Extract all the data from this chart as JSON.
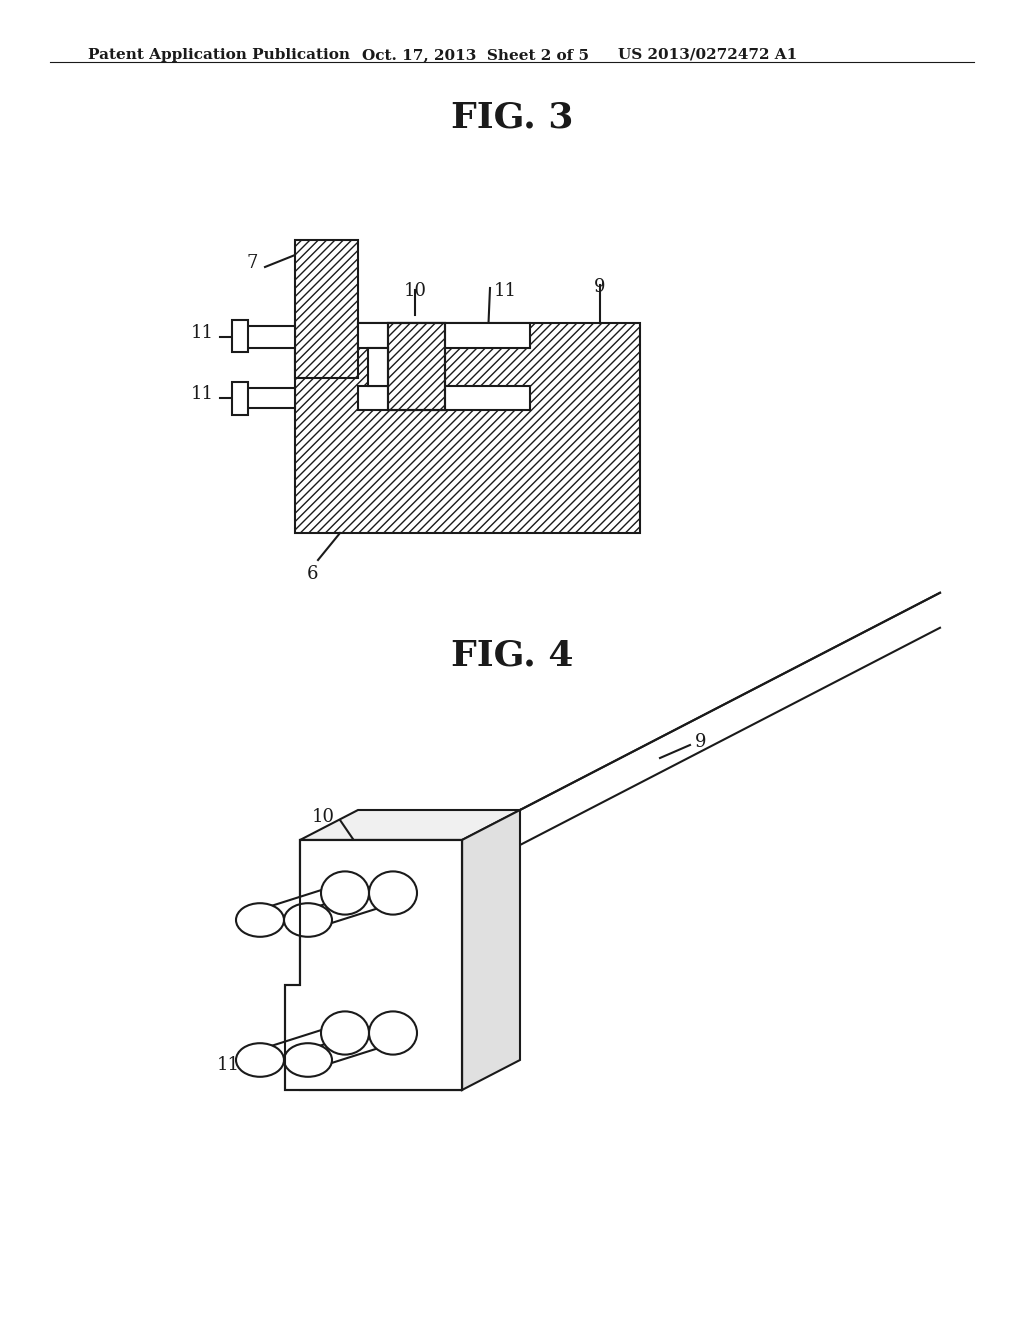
{
  "header_left": "Patent Application Publication",
  "header_mid": "Oct. 17, 2013  Sheet 2 of 5",
  "header_right": "US 2013/0272472 A1",
  "fig3_title": "FIG. 3",
  "fig4_title": "FIG. 4",
  "bg_color": "#ffffff",
  "line_color": "#1a1a1a",
  "label_6": "6",
  "label_7": "7",
  "label_9": "9",
  "label_10": "10",
  "label_11": "11"
}
